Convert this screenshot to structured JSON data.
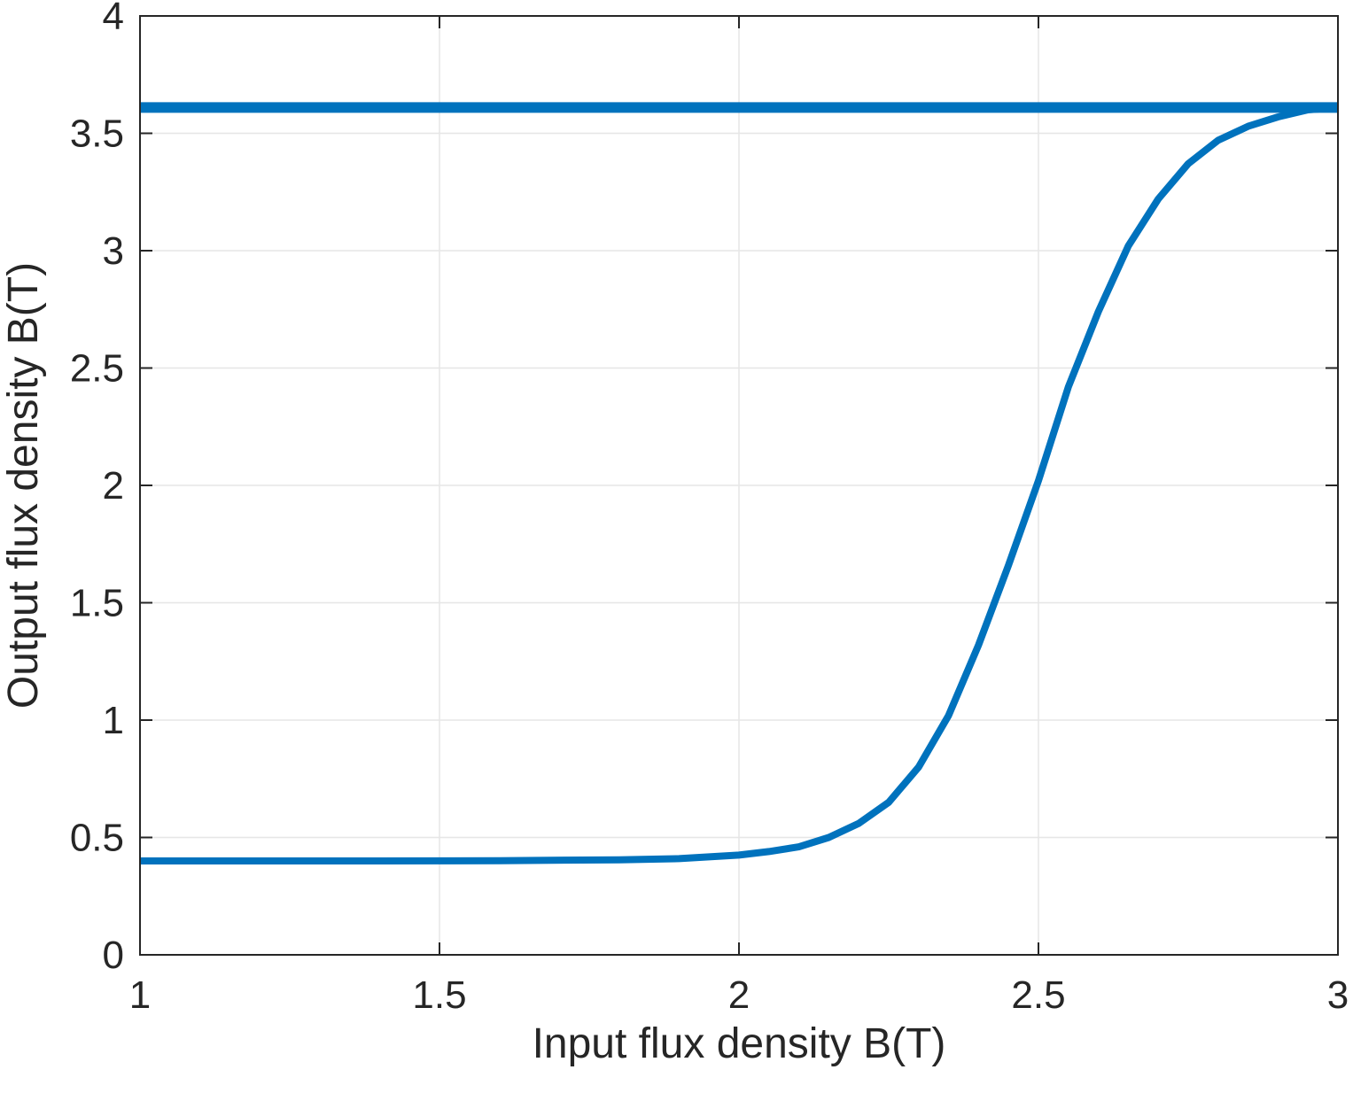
{
  "chart_data": {
    "type": "line",
    "title": "",
    "xlabel": "Input flux density B(T)",
    "ylabel": "Output flux density B(T)",
    "xlim": [
      1,
      3
    ],
    "ylim": [
      0,
      4
    ],
    "xticks": [
      1,
      1.5,
      2,
      2.5,
      3
    ],
    "yticks": [
      0,
      0.5,
      1,
      1.5,
      2,
      2.5,
      3,
      3.5,
      4
    ],
    "xtick_labels": [
      "1",
      "1.5",
      "2",
      "2.5",
      "3"
    ],
    "ytick_labels": [
      "0",
      "0.5",
      "1",
      "1.5",
      "2",
      "2.5",
      "3",
      "3.5",
      "4"
    ],
    "grid": true,
    "legend": "none",
    "colors": {
      "series": "#0072BD",
      "axis": "#262626",
      "grid": "#e6e6e6"
    },
    "series": [
      {
        "x": [
          1,
          3
        ],
        "y": [
          3.61,
          3.61
        ]
      },
      {
        "x": [
          1,
          1.2,
          1.4,
          1.6,
          1.8,
          1.9,
          2.0,
          2.05,
          2.1,
          2.15,
          2.2,
          2.25,
          2.3,
          2.35,
          2.4,
          2.45,
          2.5,
          2.55,
          2.6,
          2.65,
          2.7,
          2.75,
          2.8,
          2.85,
          2.9,
          2.95,
          3.0
        ],
        "y": [
          0.4,
          0.4,
          0.4,
          0.401,
          0.405,
          0.41,
          0.425,
          0.44,
          0.46,
          0.5,
          0.56,
          0.65,
          0.8,
          1.02,
          1.32,
          1.66,
          2.02,
          2.42,
          2.74,
          3.02,
          3.22,
          3.37,
          3.47,
          3.53,
          3.57,
          3.6,
          3.61
        ]
      }
    ]
  }
}
